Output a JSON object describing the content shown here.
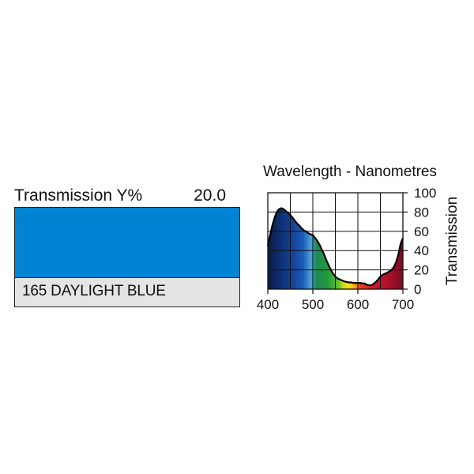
{
  "filter": {
    "transmission_label": "Transmission Y%",
    "transmission_value": "20.0",
    "name": "165 DAYLIGHT BLUE",
    "swatch_color": "#0083d3",
    "name_box_color": "#e4e4e5"
  },
  "chart_data": {
    "type": "area",
    "title": "Wavelength - Nanometres",
    "xlabel": "",
    "ylabel": "Transmission",
    "xlim": [
      400,
      700
    ],
    "ylim": [
      0,
      100
    ],
    "xticks": [
      400,
      500,
      600,
      700
    ],
    "yticks": [
      0,
      20,
      40,
      60,
      80,
      100
    ],
    "x_gridlines": [
      400,
      450,
      500,
      550,
      600,
      650,
      700
    ],
    "y_gridlines": [
      0,
      20,
      40,
      60,
      80,
      100
    ],
    "grid": true,
    "fill": "visible-spectrum gradient",
    "series": [
      {
        "x": [
          400,
          405,
          410,
          415,
          420,
          425,
          430,
          435,
          440,
          445,
          450,
          455,
          460,
          465,
          470,
          475,
          480,
          485,
          490,
          495,
          500,
          505,
          510,
          515,
          520,
          525,
          530,
          535,
          540,
          545,
          550,
          555,
          560,
          565,
          570,
          575,
          580,
          585,
          590,
          595,
          600,
          605,
          610,
          615,
          620,
          625,
          630,
          635,
          640,
          645,
          650,
          655,
          660,
          665,
          670,
          675,
          680,
          685,
          690,
          695,
          700
        ],
        "y": [
          45,
          56,
          66,
          74,
          80,
          83,
          84,
          83,
          81,
          79,
          77,
          74,
          71,
          68,
          66,
          63,
          61,
          60,
          58,
          57,
          56,
          53,
          50,
          46,
          41,
          36,
          30,
          25,
          20,
          16,
          13,
          11,
          10,
          9,
          8,
          7.5,
          7,
          7,
          6.5,
          6.5,
          6.5,
          6.5,
          6,
          6,
          4.5,
          4,
          4,
          5.5,
          7.5,
          10,
          13,
          15,
          16,
          17,
          18.5,
          20,
          23,
          28,
          36,
          47,
          53
        ]
      }
    ]
  }
}
